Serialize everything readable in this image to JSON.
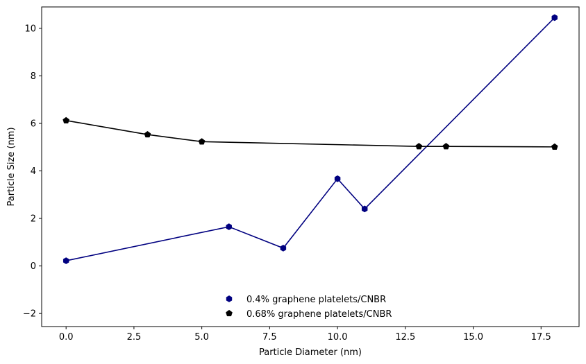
{
  "chart_data": {
    "type": "line",
    "title": "",
    "xlabel": "Particle Diameter (nm)",
    "ylabel": "Particle Size (nm)",
    "xlim": [
      -0.9,
      18.9
    ],
    "ylim": [
      -2.55,
      10.9
    ],
    "xticks": [
      0.0,
      2.5,
      5.0,
      7.5,
      10.0,
      12.5,
      15.0,
      17.5
    ],
    "xtick_labels": [
      "0.0",
      "2.5",
      "5.0",
      "7.5",
      "10.0",
      "12.5",
      "15.0",
      "17.5"
    ],
    "yticks": [
      -2,
      0,
      2,
      4,
      6,
      8,
      10
    ],
    "ytick_labels": [
      "−2",
      "0",
      "2",
      "4",
      "6",
      "8",
      "10"
    ],
    "grid": false,
    "legend_position": "lower-center",
    "series": [
      {
        "name": "0.4% graphene platelets/CNBR",
        "color": "#000080",
        "marker": "hexagon",
        "x": [
          0,
          6,
          8,
          10,
          11,
          18
        ],
        "y": [
          0.22,
          1.65,
          0.75,
          3.67,
          2.4,
          10.45
        ]
      },
      {
        "name": "0.68% graphene platelets/CNBR",
        "color": "#000000",
        "marker": "pentagon",
        "x": [
          0,
          3,
          5,
          13,
          14,
          18
        ],
        "y": [
          6.12,
          5.53,
          5.23,
          5.03,
          5.03,
          5.01
        ]
      }
    ]
  }
}
